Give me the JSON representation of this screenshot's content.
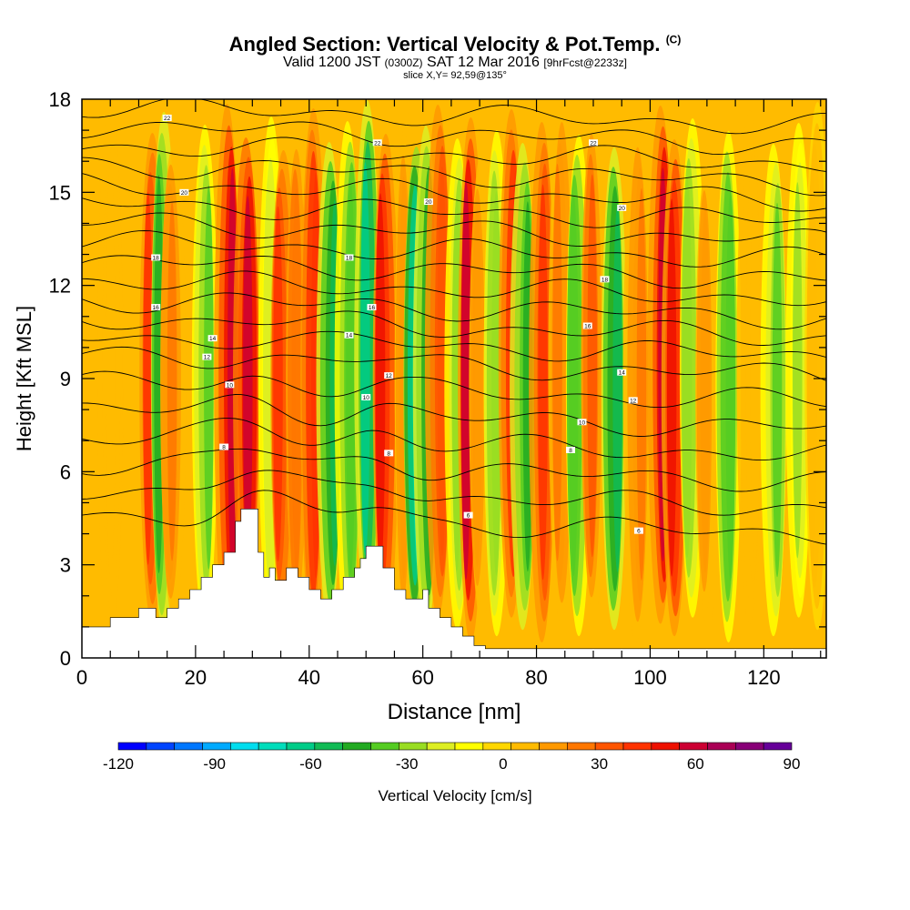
{
  "header": {
    "title": "Angled Section: Vertical Velocity & Pot.Temp.",
    "title_tag": "(C)",
    "valid_prefix": "Valid 1200 JST",
    "valid_z": "(0300Z)",
    "valid_date": "SAT 12 Mar 2016",
    "forecast": "[9hrFcst@2233z]",
    "slice": "slice X,Y= 92,59@135°"
  },
  "chart_data": {
    "type": "heatmap",
    "title": "Angled Section: Vertical Velocity & Pot.Temp.",
    "xlabel": "Distance [nm]",
    "ylabel": "Height [Kft MSL]",
    "xlim": [
      0,
      131
    ],
    "ylim": [
      0,
      18
    ],
    "x_ticks": [
      0,
      20,
      40,
      60,
      80,
      100,
      120
    ],
    "y_ticks": [
      0,
      3,
      6,
      9,
      12,
      15,
      18
    ],
    "colorbar": {
      "label": "Vertical Velocity [cm/s]",
      "ticks": [
        -120,
        -90,
        -60,
        -30,
        0,
        30,
        60,
        90
      ],
      "range": [
        -120,
        90
      ],
      "colors": [
        "#0000ff",
        "#0044ff",
        "#0077ff",
        "#00aaff",
        "#00ddee",
        "#00ddbb",
        "#00cc88",
        "#11bb55",
        "#22aa22",
        "#55cc22",
        "#99dd22",
        "#ddee22",
        "#ffff00",
        "#ffd700",
        "#ffbb00",
        "#ff9900",
        "#ff7700",
        "#ff5500",
        "#ff3300",
        "#ee1100",
        "#cc0033",
        "#aa0055",
        "#880077",
        "#660099"
      ]
    },
    "velocity_columns": [
      {
        "x": 5,
        "v": 10
      },
      {
        "x": 12,
        "v": 40
      },
      {
        "x": 14,
        "v": -45
      },
      {
        "x": 16,
        "v": 20
      },
      {
        "x": 22,
        "v": -35
      },
      {
        "x": 26,
        "v": 55
      },
      {
        "x": 29,
        "v": 60
      },
      {
        "x": 33,
        "v": -20
      },
      {
        "x": 35,
        "v": 40
      },
      {
        "x": 38,
        "v": 25
      },
      {
        "x": 41,
        "v": 45
      },
      {
        "x": 44,
        "v": -55
      },
      {
        "x": 47,
        "v": -40
      },
      {
        "x": 50,
        "v": -60
      },
      {
        "x": 53,
        "v": 50
      },
      {
        "x": 57,
        "v": 15
      },
      {
        "x": 59,
        "v": -70
      },
      {
        "x": 61,
        "v": -50
      },
      {
        "x": 63,
        "v": 35
      },
      {
        "x": 66,
        "v": -30
      },
      {
        "x": 68,
        "v": 55
      },
      {
        "x": 70,
        "v": 15
      },
      {
        "x": 73,
        "v": -30
      },
      {
        "x": 76,
        "v": 45
      },
      {
        "x": 78,
        "v": -45
      },
      {
        "x": 81,
        "v": 40
      },
      {
        "x": 84,
        "v": 20
      },
      {
        "x": 87,
        "v": -40
      },
      {
        "x": 90,
        "v": 30
      },
      {
        "x": 94,
        "v": -55
      },
      {
        "x": 98,
        "v": 20
      },
      {
        "x": 102,
        "v": 55
      },
      {
        "x": 104,
        "v": 50
      },
      {
        "x": 107,
        "v": -30
      },
      {
        "x": 110,
        "v": 15
      },
      {
        "x": 114,
        "v": -40
      },
      {
        "x": 118,
        "v": 10
      },
      {
        "x": 122,
        "v": -35
      },
      {
        "x": 126,
        "v": -25
      },
      {
        "x": 129,
        "v": 5
      }
    ],
    "terrain": [
      [
        0,
        1
      ],
      [
        5,
        1
      ],
      [
        5,
        1.3
      ],
      [
        10,
        1.3
      ],
      [
        10,
        1.6
      ],
      [
        13,
        1.6
      ],
      [
        13,
        1.3
      ],
      [
        15,
        1.3
      ],
      [
        15,
        1.6
      ],
      [
        17,
        1.6
      ],
      [
        17,
        1.9
      ],
      [
        19,
        1.9
      ],
      [
        19,
        2.2
      ],
      [
        21,
        2.2
      ],
      [
        21,
        2.6
      ],
      [
        23,
        2.6
      ],
      [
        23,
        3.0
      ],
      [
        25,
        3.0
      ],
      [
        25,
        3.4
      ],
      [
        27,
        3.4
      ],
      [
        27,
        4.4
      ],
      [
        28,
        4.4
      ],
      [
        28,
        4.8
      ],
      [
        31,
        4.8
      ],
      [
        31,
        3.4
      ],
      [
        32,
        3.4
      ],
      [
        32,
        2.6
      ],
      [
        33,
        2.6
      ],
      [
        33,
        2.9
      ],
      [
        34,
        2.9
      ],
      [
        34,
        2.5
      ],
      [
        36,
        2.5
      ],
      [
        36,
        2.9
      ],
      [
        38,
        2.9
      ],
      [
        38,
        2.6
      ],
      [
        40,
        2.6
      ],
      [
        40,
        2.2
      ],
      [
        42,
        2.2
      ],
      [
        42,
        1.9
      ],
      [
        44,
        1.9
      ],
      [
        44,
        2.2
      ],
      [
        46,
        2.2
      ],
      [
        46,
        2.6
      ],
      [
        48,
        2.6
      ],
      [
        48,
        2.9
      ],
      [
        49,
        2.9
      ],
      [
        49,
        3.2
      ],
      [
        50,
        3.2
      ],
      [
        50,
        3.6
      ],
      [
        53,
        3.6
      ],
      [
        53,
        2.9
      ],
      [
        55,
        2.9
      ],
      [
        55,
        2.2
      ],
      [
        57,
        2.2
      ],
      [
        57,
        1.9
      ],
      [
        60,
        1.9
      ],
      [
        60,
        2.2
      ],
      [
        61,
        2.2
      ],
      [
        61,
        1.6
      ],
      [
        63,
        1.6
      ],
      [
        63,
        1.3
      ],
      [
        65,
        1.3
      ],
      [
        65,
        1.0
      ],
      [
        67,
        1.0
      ],
      [
        67,
        0.7
      ],
      [
        69,
        0.7
      ],
      [
        69,
        0.4
      ],
      [
        71,
        0.4
      ],
      [
        71,
        0.3
      ],
      [
        131,
        0.3
      ]
    ],
    "theta_labels": [
      {
        "x": 15,
        "y": 17.4,
        "text": "22"
      },
      {
        "x": 18,
        "y": 15.0,
        "text": "20"
      },
      {
        "x": 13,
        "y": 12.9,
        "text": "18"
      },
      {
        "x": 13,
        "y": 11.3,
        "text": "16"
      },
      {
        "x": 23,
        "y": 10.3,
        "text": "14"
      },
      {
        "x": 22,
        "y": 9.7,
        "text": "12"
      },
      {
        "x": 26,
        "y": 8.8,
        "text": "10"
      },
      {
        "x": 25,
        "y": 6.8,
        "text": "8"
      },
      {
        "x": 52,
        "y": 16.6,
        "text": "22"
      },
      {
        "x": 61,
        "y": 14.7,
        "text": "20"
      },
      {
        "x": 47,
        "y": 12.9,
        "text": "18"
      },
      {
        "x": 51,
        "y": 11.3,
        "text": "16"
      },
      {
        "x": 47,
        "y": 10.4,
        "text": "14"
      },
      {
        "x": 54,
        "y": 9.1,
        "text": "12"
      },
      {
        "x": 50,
        "y": 8.4,
        "text": "10"
      },
      {
        "x": 54,
        "y": 6.6,
        "text": "8"
      },
      {
        "x": 68,
        "y": 4.6,
        "text": "6"
      },
      {
        "x": 90,
        "y": 16.6,
        "text": "22"
      },
      {
        "x": 95,
        "y": 14.5,
        "text": "20"
      },
      {
        "x": 92,
        "y": 12.2,
        "text": "18"
      },
      {
        "x": 89,
        "y": 10.7,
        "text": "16"
      },
      {
        "x": 95,
        "y": 9.2,
        "text": "14"
      },
      {
        "x": 97,
        "y": 8.3,
        "text": "12"
      },
      {
        "x": 88,
        "y": 7.6,
        "text": "10"
      },
      {
        "x": 86,
        "y": 6.7,
        "text": "8"
      },
      {
        "x": 98,
        "y": 4.1,
        "text": "6"
      }
    ]
  }
}
